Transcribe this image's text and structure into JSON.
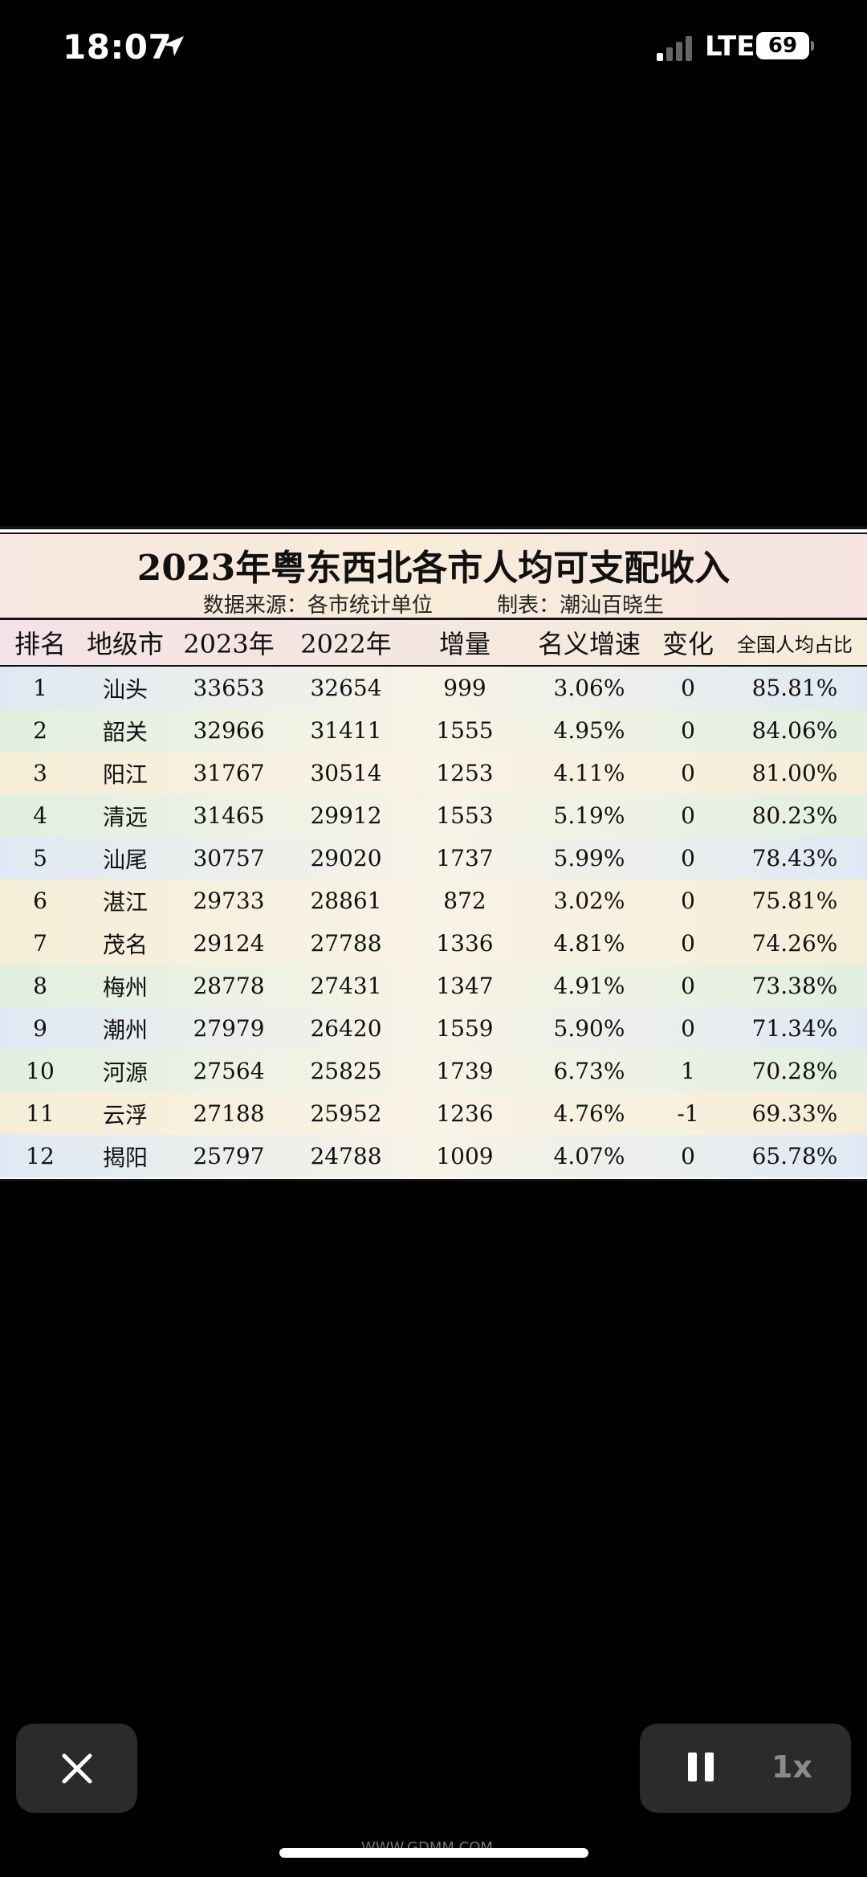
{
  "status_bar": {
    "time": "18:07",
    "carrier": "LTE",
    "battery": "69"
  },
  "image": {
    "title": "2023年粤东西北各市人均可支配收入",
    "source": "数据来源：各市统计单位",
    "maker": "制表：潮汕百晓生"
  },
  "table": {
    "headers": [
      "排名",
      "地级市",
      "2023年",
      "2022年",
      "增量",
      "名义增速",
      "变化",
      "全国人均占比"
    ],
    "rows": [
      [
        "1",
        "汕头",
        "33653",
        "32654",
        "999",
        "3.06%",
        "0",
        "85.81%"
      ],
      [
        "2",
        "韶关",
        "32966",
        "31411",
        "1555",
        "4.95%",
        "0",
        "84.06%"
      ],
      [
        "3",
        "阳江",
        "31767",
        "30514",
        "1253",
        "4.11%",
        "0",
        "81.00%"
      ],
      [
        "4",
        "清远",
        "31465",
        "29912",
        "1553",
        "5.19%",
        "0",
        "80.23%"
      ],
      [
        "5",
        "汕尾",
        "30757",
        "29020",
        "1737",
        "5.99%",
        "0",
        "78.43%"
      ],
      [
        "6",
        "湛江",
        "29733",
        "28861",
        "872",
        "3.02%",
        "0",
        "75.81%"
      ],
      [
        "7",
        "茂名",
        "29124",
        "27788",
        "1336",
        "4.81%",
        "0",
        "74.26%"
      ],
      [
        "8",
        "梅州",
        "28778",
        "27431",
        "1347",
        "4.91%",
        "0",
        "73.38%"
      ],
      [
        "9",
        "潮州",
        "27979",
        "26420",
        "1559",
        "5.90%",
        "0",
        "71.34%"
      ],
      [
        "10",
        "河源",
        "27564",
        "25825",
        "1739",
        "6.73%",
        "1",
        "70.28%"
      ],
      [
        "11",
        "云浮",
        "27188",
        "25952",
        "1236",
        "4.76%",
        "-1",
        "69.33%"
      ],
      [
        "12",
        "揭阳",
        "25797",
        "24788",
        "1009",
        "4.07%",
        "0",
        "65.78%"
      ]
    ],
    "row_colors": [
      "#dfe9f3",
      "#e1efe0",
      "#f5edd7",
      "#e1efe0",
      "#dfe9f3",
      "#f5edd7",
      "#f5edd7",
      "#e1efe0",
      "#dfe9f3",
      "#e1efe0",
      "#f5edd7",
      "#dfe9f3"
    ]
  },
  "controls": {
    "speed": "1x"
  },
  "watermark": "WWW.GDMM.COM"
}
